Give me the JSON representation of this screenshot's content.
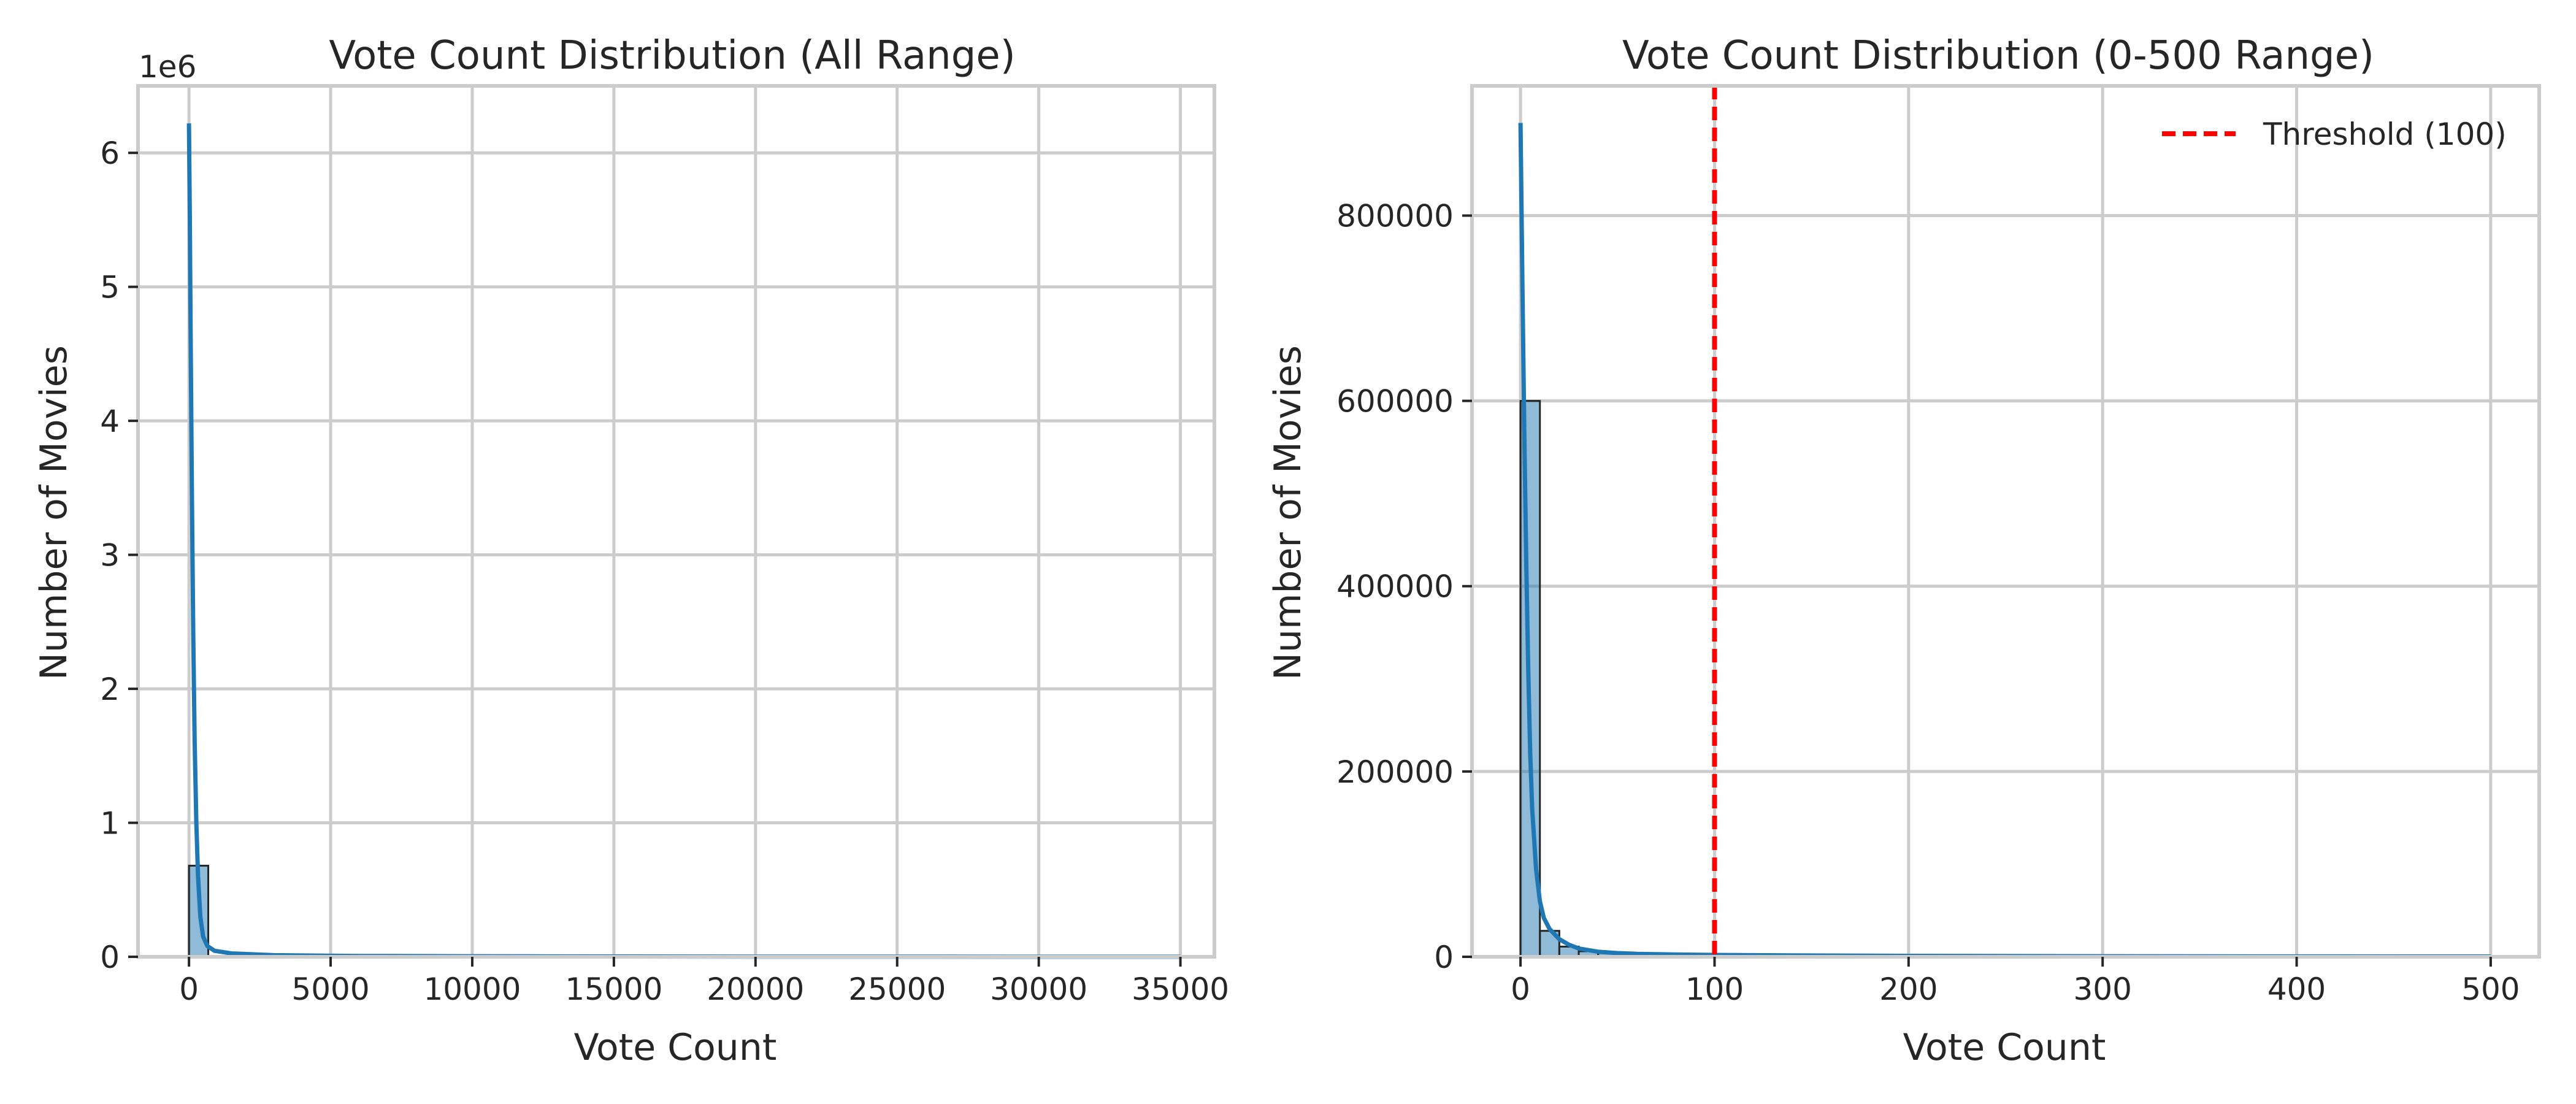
{
  "colors": {
    "bars": "#1f77b4",
    "kde": "#1f77b4",
    "threshold": "#ff0000",
    "grid": "#cccccc",
    "spine": "#cccccc",
    "text": "#262626"
  },
  "chart_data": [
    {
      "type": "bar",
      "title": "Vote Count Distribution (All Range)",
      "xlabel": "Vote Count",
      "ylabel": "Number of Movies",
      "y_offset_label": "1e6",
      "xlim": [
        -1800,
        36200
      ],
      "ylim": [
        0,
        6500000
      ],
      "xticks": [
        0,
        5000,
        10000,
        15000,
        20000,
        25000,
        30000,
        35000
      ],
      "yticks": [
        0,
        1000000,
        2000000,
        3000000,
        4000000,
        5000000,
        6000000
      ],
      "ytick_labels": [
        "0",
        "1",
        "2",
        "3",
        "4",
        "5",
        "6"
      ],
      "grid": true,
      "bins": [
        {
          "x0": 0,
          "x1": 680,
          "count": 680000
        },
        {
          "x0": 680,
          "x1": 1360,
          "count": 6000
        },
        {
          "x0": 1360,
          "x1": 2040,
          "count": 2500
        },
        {
          "x0": 2040,
          "x1": 2720,
          "count": 1200
        }
      ],
      "kde": {
        "name": "kde",
        "x": [
          0,
          30,
          60,
          100,
          150,
          200,
          260,
          320,
          400,
          500,
          650,
          900,
          1500,
          3000,
          6000,
          12000,
          20000,
          35000
        ],
        "y": [
          6220000,
          5500000,
          4600000,
          3500000,
          2400000,
          1600000,
          1000000,
          600000,
          300000,
          150000,
          80000,
          45000,
          25000,
          12000,
          6000,
          3000,
          1500,
          500
        ]
      }
    },
    {
      "type": "bar",
      "title": "Vote Count Distribution (0-500 Range)",
      "xlabel": "Vote Count",
      "ylabel": "Number of Movies",
      "xlim": [
        -25,
        525
      ],
      "ylim": [
        0,
        940000
      ],
      "xticks": [
        0,
        100,
        200,
        300,
        400,
        500
      ],
      "yticks": [
        0,
        200000,
        400000,
        600000,
        800000
      ],
      "ytick_labels": [
        "0",
        "200000",
        "400000",
        "600000",
        "800000"
      ],
      "grid": true,
      "legend_position": "top-right",
      "threshold": {
        "x": 100,
        "label": "Threshold (100)"
      },
      "bins": [
        {
          "x0": 0,
          "x1": 10,
          "count": 600000
        },
        {
          "x0": 10,
          "x1": 20,
          "count": 28000
        },
        {
          "x0": 20,
          "x1": 30,
          "count": 11000
        },
        {
          "x0": 30,
          "x1": 40,
          "count": 6000
        },
        {
          "x0": 40,
          "x1": 50,
          "count": 4000
        },
        {
          "x0": 50,
          "x1": 60,
          "count": 3000
        },
        {
          "x0": 60,
          "x1": 70,
          "count": 2400
        },
        {
          "x0": 70,
          "x1": 80,
          "count": 2000
        },
        {
          "x0": 80,
          "x1": 90,
          "count": 1700
        },
        {
          "x0": 90,
          "x1": 100,
          "count": 1500
        },
        {
          "x0": 100,
          "x1": 150,
          "count": 1200
        },
        {
          "x0": 150,
          "x1": 200,
          "count": 900
        },
        {
          "x0": 200,
          "x1": 300,
          "count": 700
        },
        {
          "x0": 300,
          "x1": 400,
          "count": 500
        },
        {
          "x0": 400,
          "x1": 500,
          "count": 400
        }
      ],
      "kde": {
        "name": "kde",
        "x": [
          0,
          1,
          2,
          3,
          4,
          5,
          6,
          8,
          10,
          12,
          15,
          20,
          25,
          30,
          40,
          50,
          60,
          80,
          100,
          150,
          200,
          300,
          400,
          500
        ],
        "y": [
          900000,
          720000,
          560000,
          420000,
          310000,
          220000,
          160000,
          95000,
          60000,
          42000,
          30000,
          19000,
          13000,
          9000,
          5500,
          4000,
          3200,
          2500,
          2000,
          1400,
          1000,
          600,
          400,
          300
        ]
      }
    }
  ]
}
